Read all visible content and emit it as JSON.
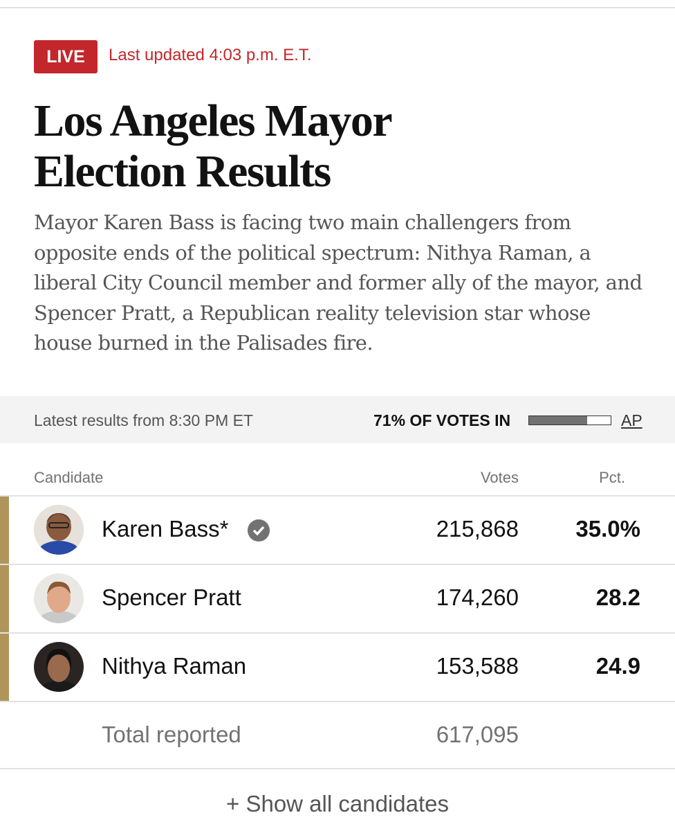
{
  "header": {
    "live": "LIVE",
    "updated": "Last updated 4:03 p.m. E.T.",
    "title": "Los Angeles Mayor Election Results",
    "description": "Mayor Karen Bass is facing two main challengers from opposite ends of the political spectrum: Nithya Raman, a liberal City Council member and former ally of the mayor, and Spencer Pratt, a Republican reality television star whose house burned in the Palisades fire."
  },
  "status": {
    "latest": "Latest results from 8:30 PM ET",
    "reporting": {
      "value": 71,
      "label": "71% OF VOTES IN"
    },
    "source": "AP"
  },
  "table": {
    "columns": [
      "Candidate",
      "Votes",
      "Pct."
    ],
    "rows": [
      [
        "Karen Bass*",
        "215,868",
        "35.0%"
      ],
      [
        "Spencer Pratt",
        "174,260",
        "28.2"
      ],
      [
        "Nithya Raman",
        "153,588",
        "24.9"
      ]
    ],
    "total": [
      "Total reported",
      "617,095"
    ]
  },
  "footer": {
    "show_all": "+ Show all candidates"
  }
}
